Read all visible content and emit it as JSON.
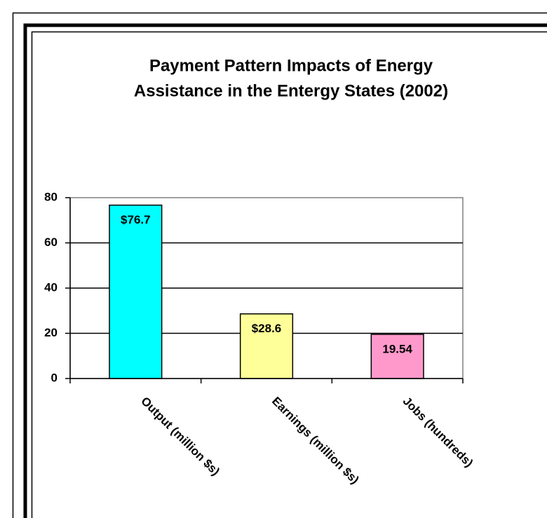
{
  "chart_data": {
    "type": "bar",
    "title": [
      "Payment Pattern Impacts of Energy",
      "Assistance in the Entergy States (2002)"
    ],
    "categories": [
      "Output (million $s)",
      "Earnings (million $s)",
      "Jobs (hundreds)"
    ],
    "values": [
      76.7,
      28.6,
      19.54
    ],
    "value_labels": [
      "$76.7",
      "$28.6",
      "19.54"
    ],
    "colors": [
      "#00ffff",
      "#ffff99",
      "#ff99cc"
    ],
    "ylim": [
      0,
      80
    ],
    "yticks": [
      0,
      20,
      40,
      60,
      80
    ],
    "grid": true
  }
}
